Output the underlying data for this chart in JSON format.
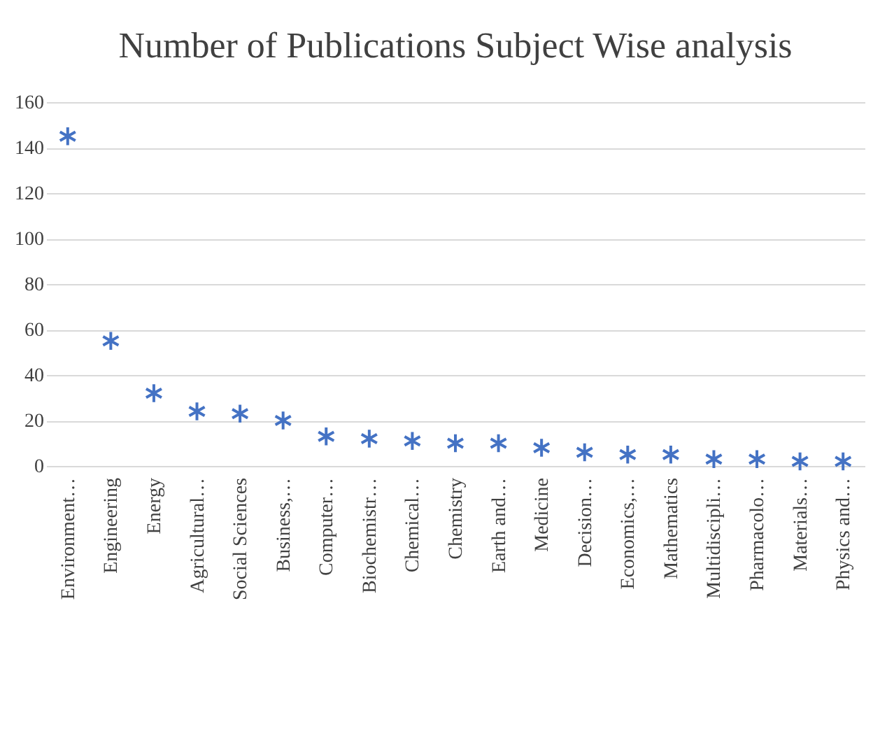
{
  "chart_data": {
    "type": "scatter",
    "title": "Number of Publications Subject Wise analysis",
    "categories": [
      "Environment…",
      "Engineering",
      "Energy",
      "Agricultural…",
      "Social Sciences",
      "Business,…",
      "Computer…",
      "Biochemistr…",
      "Chemical…",
      "Chemistry",
      "Earth and…",
      "Medicine",
      "Decision…",
      "Economics,…",
      "Mathematics",
      "Multidiscipli…",
      "Pharmacolo…",
      "Materials…",
      "Physics and…"
    ],
    "values": [
      145,
      55,
      32,
      24,
      23,
      20,
      13,
      12,
      11,
      10,
      10,
      8,
      6,
      5,
      5,
      3,
      3,
      2,
      2
    ],
    "color": "#4472c4",
    "marker": "cross",
    "ylim": [
      0,
      160
    ],
    "yticks": [
      0,
      20,
      40,
      60,
      80,
      100,
      120,
      140,
      160
    ],
    "grid": "y"
  }
}
